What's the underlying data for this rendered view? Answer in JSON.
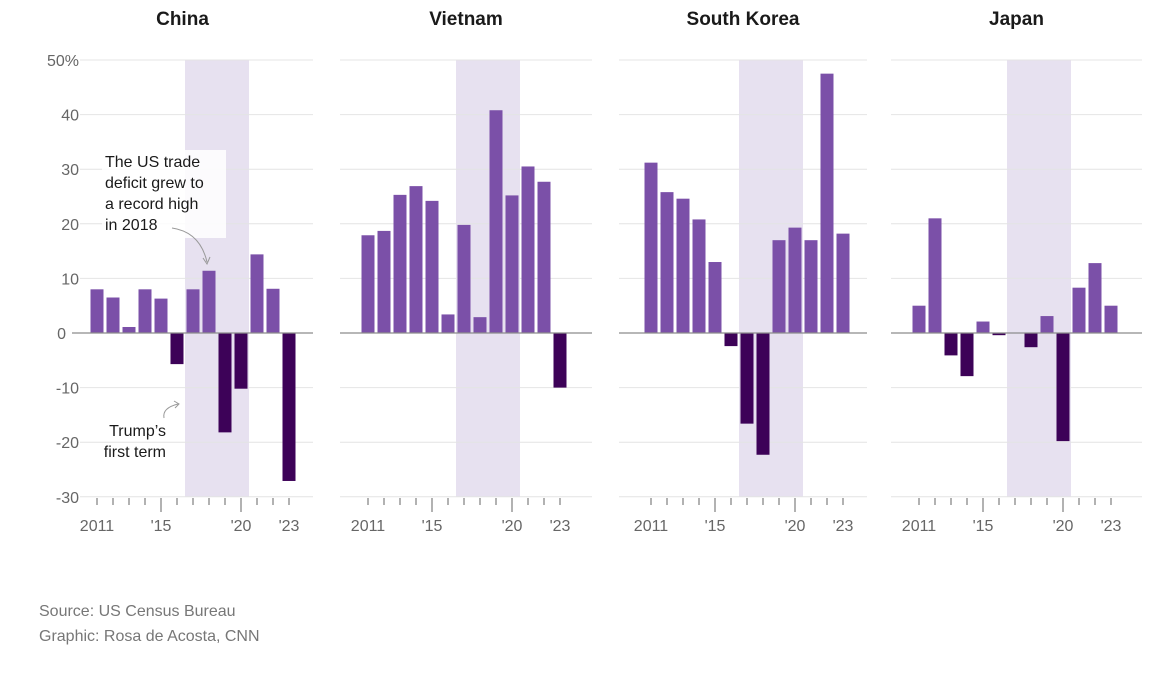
{
  "chart_data": {
    "type": "bar",
    "years": [
      2011,
      2012,
      2013,
      2014,
      2015,
      2016,
      2017,
      2018,
      2019,
      2020,
      2021,
      2022,
      2023
    ],
    "x_tick_labels": {
      "0": "2011",
      "4": "'15",
      "9": "'20",
      "12": "'23"
    },
    "y_ticks": [
      50,
      40,
      30,
      20,
      10,
      0,
      -10,
      -20,
      -30
    ],
    "y_tick_labels": [
      "50%",
      "40",
      "30",
      "20",
      "10",
      "0",
      "-10",
      "-20",
      "-30"
    ],
    "ylim": [
      -30,
      50
    ],
    "grid": true,
    "shaded_period": {
      "from": 2017,
      "to": 2020
    },
    "colors": {
      "positive": "#7b50a8",
      "negative": "#3d0258",
      "shade": "#e7e1f0",
      "grid": "#e4e4e4",
      "zero": "#8c8c8c"
    },
    "panels": [
      {
        "title": "China",
        "values": [
          8.0,
          6.5,
          1.1,
          8.0,
          6.3,
          -5.7,
          8.0,
          11.4,
          -18.2,
          -10.2,
          14.4,
          8.1,
          -27.1
        ]
      },
      {
        "title": "Vietnam",
        "values": [
          17.9,
          18.7,
          25.3,
          26.9,
          24.2,
          3.4,
          19.8,
          2.9,
          40.8,
          25.2,
          30.5,
          27.7,
          -10.0
        ]
      },
      {
        "title": "South Korea",
        "values": [
          31.2,
          25.8,
          24.6,
          20.8,
          13.0,
          -2.4,
          -16.6,
          -22.3,
          17.0,
          19.3,
          17.0,
          47.5,
          18.2
        ]
      },
      {
        "title": "Japan",
        "values": [
          5.0,
          21.0,
          -4.1,
          -7.9,
          2.1,
          -0.4,
          0,
          -2.6,
          3.1,
          -19.8,
          8.3,
          12.8,
          5.0
        ]
      }
    ],
    "annotations": {
      "record": [
        "The US trade",
        "deficit grew to",
        "a record high",
        "in 2018"
      ],
      "trump": [
        "Trump’s",
        "first term"
      ]
    }
  },
  "footer": {
    "source": "Source: US Census Bureau",
    "graphic": "Graphic: Rosa de Acosta, CNN"
  }
}
